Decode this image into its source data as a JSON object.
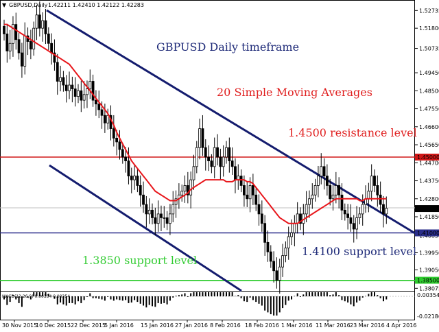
{
  "header": {
    "symbol_label": "GBPUSD,Daily",
    "ohlc_text": "1.42211 1.42410 1.42122 1.42283"
  },
  "annotations": {
    "title": "GBPUSD Daily timeframe",
    "sma": "20 Simple Moving Averages",
    "resistance": "1.4500 resistance level",
    "support_1410": "1.4100 support level",
    "support_1385": "1.3850 support level"
  },
  "colors": {
    "candle": "#000000",
    "sma": "#e8161b",
    "channel": "#141c6e",
    "resistance": "#d01717",
    "support_1410": "#2a2e8a",
    "support_1385": "#2ecc2e",
    "title_text": "#1e2a78",
    "red_text": "#e02020",
    "green_text": "#33cc33",
    "indicator": "#000000"
  },
  "price_axis": {
    "labels": [
      "1.52735",
      "1.51800",
      "1.50735",
      "1.49450",
      "1.48500",
      "1.47550",
      "1.46600",
      "1.45650",
      "1.44700",
      "1.43750",
      "1.42800",
      "1.41850",
      "1.40850",
      "1.39950",
      "1.39050",
      "1.38075"
    ],
    "level_badges": [
      "1.45000",
      "1.42283",
      "1.41000",
      "1.38500"
    ]
  },
  "indicator_axis": {
    "labels": [
      "0.00354",
      "-0.02186"
    ]
  },
  "indicator_header": "MACD(12,26,9) 0.00354 0.00354",
  "time_axis": {
    "labels": [
      "30 Nov 2015",
      "10 Dec 2015",
      "22 Dec 2015",
      "5 Jan 2016",
      "15 Jan 2016",
      "27 Jan 2016",
      "8 Feb 2016",
      "18 Feb 2016",
      "1 Mar 2016",
      "11 Mar 2016",
      "23 Mar 2016",
      "4 Apr 2016"
    ]
  },
  "chart_data": {
    "type": "candlestick",
    "symbol": "GBPUSD",
    "timeframe": "Daily",
    "last": {
      "open": 1.42211,
      "high": 1.4241,
      "low": 1.42122,
      "close": 1.42283
    },
    "y_range": [
      1.38,
      1.531
    ],
    "horizontal_levels": [
      {
        "value": 1.45,
        "label": "1.4500 resistance level"
      },
      {
        "value": 1.41,
        "label": "1.4100 support level"
      },
      {
        "value": 1.385,
        "label": "1.3850 support level"
      }
    ],
    "candles_close": [
      1.515,
      1.506,
      1.51,
      1.52,
      1.512,
      1.505,
      1.498,
      1.514,
      1.511,
      1.507,
      1.518,
      1.525,
      1.518,
      1.522,
      1.515,
      1.51,
      1.505,
      1.5,
      1.49,
      1.492,
      1.488,
      1.485,
      1.488,
      1.486,
      1.482,
      1.485,
      1.48,
      1.483,
      1.486,
      1.49,
      1.48,
      1.478,
      1.475,
      1.472,
      1.468,
      1.472,
      1.465,
      1.46,
      1.458,
      1.454,
      1.45,
      1.448,
      1.44,
      1.438,
      1.44,
      1.435,
      1.43,
      1.425,
      1.42,
      1.422,
      1.418,
      1.415,
      1.42,
      1.418,
      1.418,
      1.415,
      1.42,
      1.425,
      1.428,
      1.43,
      1.432,
      1.435,
      1.43,
      1.438,
      1.445,
      1.455,
      1.465,
      1.455,
      1.45,
      1.448,
      1.445,
      1.455,
      1.45,
      1.445,
      1.45,
      1.455,
      1.448,
      1.445,
      1.438,
      1.44,
      1.435,
      1.43,
      1.428,
      1.435,
      1.43,
      1.425,
      1.42,
      1.415,
      1.405,
      1.4,
      1.395,
      1.39,
      1.385,
      1.392,
      1.398,
      1.402,
      1.408,
      1.41,
      1.415,
      1.42,
      1.415,
      1.42,
      1.425,
      1.428,
      1.43,
      1.435,
      1.44,
      1.445,
      1.44,
      1.435,
      1.428,
      1.43,
      1.435,
      1.43,
      1.422,
      1.42,
      1.418,
      1.415,
      1.412,
      1.418,
      1.42,
      1.425,
      1.428,
      1.432,
      1.44,
      1.435,
      1.43,
      1.425,
      1.42,
      1.423
    ],
    "sma20": [
      1.52,
      1.52,
      1.519,
      1.518,
      1.517,
      1.516,
      1.515,
      1.514,
      1.513,
      1.512,
      1.511,
      1.51,
      1.509,
      1.508,
      1.507,
      1.506,
      1.505,
      1.504,
      1.503,
      1.502,
      1.501,
      1.5,
      1.499,
      1.497,
      1.495,
      1.493,
      1.491,
      1.489,
      1.487,
      1.485,
      1.483,
      1.481,
      1.479,
      1.477,
      1.475,
      1.473,
      1.47,
      1.467,
      1.463,
      1.46,
      1.457,
      1.454,
      1.451,
      1.448,
      1.446,
      1.444,
      1.442,
      1.44,
      1.438,
      1.436,
      1.434,
      1.432,
      1.431,
      1.43,
      1.429,
      1.428,
      1.427,
      1.427,
      1.427,
      1.428,
      1.429,
      1.43,
      1.431,
      1.433,
      1.434,
      1.435,
      1.436,
      1.437,
      1.438,
      1.438,
      1.438,
      1.438,
      1.438,
      1.438,
      1.438,
      1.437,
      1.437,
      1.437,
      1.438,
      1.438,
      1.438,
      1.438,
      1.437,
      1.437,
      1.436,
      1.434,
      1.432,
      1.43,
      1.428,
      1.426,
      1.424,
      1.422,
      1.42,
      1.418,
      1.417,
      1.416,
      1.415,
      1.415,
      1.415,
      1.415,
      1.416,
      1.417,
      1.418,
      1.419,
      1.42,
      1.421,
      1.422,
      1.423,
      1.424,
      1.425,
      1.426,
      1.427,
      1.428,
      1.428,
      1.428,
      1.428,
      1.428,
      1.428,
      1.428,
      1.428,
      1.427,
      1.427,
      1.428,
      1.428,
      1.428,
      1.428,
      1.428,
      1.428,
      1.428,
      1.428
    ]
  }
}
